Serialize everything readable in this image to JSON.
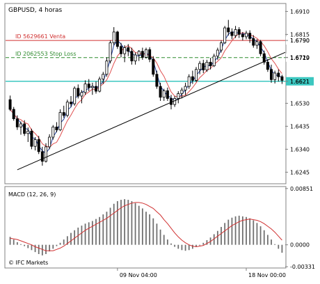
{
  "chart_data": [
    {
      "type": "candlestick",
      "title": "GBPUSD, 4 horas",
      "y_ticks": [
        "1.6910",
        "1.6815",
        "1.6790",
        "1.6720",
        "1.6719",
        "1.6621",
        "1.6530",
        "1.6435",
        "1.6340",
        "1.6245"
      ],
      "ylim": [
        1.62,
        1.694
      ],
      "x_ticks": [
        "09 Nov 04:00",
        "18 Nov 00:00"
      ],
      "colors": {
        "bull": "#ffffff",
        "bear": "#000000",
        "wick": "#000000",
        "ma_fast": "#1f3f9f",
        "ma_slow": "#e05050"
      },
      "annotations": [
        {
          "label": "ID 5629661 Venta",
          "price": 1.679,
          "price_label": "1.6790",
          "color": "#d03030",
          "style": "solid"
        },
        {
          "label": "ID 2062553 Stop Loss",
          "price": 1.6719,
          "price_label": "1.6719",
          "color": "#2e8b2e",
          "style": "dashed"
        },
        {
          "label": "",
          "price": 1.6621,
          "price_label": "1.6621",
          "color": "#3cc7c0",
          "style": "solid",
          "highlight": true
        }
      ],
      "trendline": {
        "from": [
          2,
          1.6255
        ],
        "to": [
          77,
          1.6735
        ],
        "color": "#000000"
      },
      "candles": [
        [
          1.6545,
          1.6562,
          1.6498,
          1.6505
        ],
        [
          1.6505,
          1.6515,
          1.6458,
          1.6466
        ],
        [
          1.6466,
          1.648,
          1.642,
          1.6432
        ],
        [
          1.6432,
          1.6455,
          1.64,
          1.6445
        ],
        [
          1.6445,
          1.646,
          1.6395,
          1.6405
        ],
        [
          1.6405,
          1.643,
          1.637,
          1.6415
        ],
        [
          1.6415,
          1.6425,
          1.634,
          1.6352
        ],
        [
          1.6352,
          1.639,
          1.6335,
          1.638
        ],
        [
          1.638,
          1.6395,
          1.632,
          1.633
        ],
        [
          1.633,
          1.635,
          1.6272,
          1.629
        ],
        [
          1.629,
          1.6365,
          1.6285,
          1.635
        ],
        [
          1.635,
          1.6402,
          1.634,
          1.639
        ],
        [
          1.639,
          1.644,
          1.638,
          1.6432
        ],
        [
          1.6432,
          1.6452,
          1.641,
          1.642
        ],
        [
          1.642,
          1.6505,
          1.6415,
          1.6492
        ],
        [
          1.6492,
          1.652,
          1.647,
          1.648
        ],
        [
          1.648,
          1.6545,
          1.6472,
          1.6535
        ],
        [
          1.6535,
          1.656,
          1.6515,
          1.6528
        ],
        [
          1.6528,
          1.66,
          1.652,
          1.6592
        ],
        [
          1.6592,
          1.6608,
          1.655,
          1.656
        ],
        [
          1.656,
          1.6585,
          1.653,
          1.6575
        ],
        [
          1.6575,
          1.6625,
          1.6565,
          1.661
        ],
        [
          1.661,
          1.663,
          1.658,
          1.6595
        ],
        [
          1.6595,
          1.6615,
          1.6565,
          1.66
        ],
        [
          1.66,
          1.662,
          1.657,
          1.658
        ],
        [
          1.658,
          1.664,
          1.6575,
          1.663
        ],
        [
          1.663,
          1.666,
          1.661,
          1.665
        ],
        [
          1.665,
          1.672,
          1.664,
          1.6705
        ],
        [
          1.6705,
          1.679,
          1.6695,
          1.678
        ],
        [
          1.678,
          1.6845,
          1.677,
          1.6825
        ],
        [
          1.6825,
          1.683,
          1.6755,
          1.6765
        ],
        [
          1.6765,
          1.678,
          1.672,
          1.6735
        ],
        [
          1.6735,
          1.677,
          1.67,
          1.676
        ],
        [
          1.676,
          1.6775,
          1.6725,
          1.6745
        ],
        [
          1.6745,
          1.676,
          1.669,
          1.6705
        ],
        [
          1.6705,
          1.674,
          1.669,
          1.673
        ],
        [
          1.673,
          1.675,
          1.6705,
          1.6745
        ],
        [
          1.6745,
          1.676,
          1.671,
          1.672
        ],
        [
          1.672,
          1.676,
          1.6715,
          1.6752
        ],
        [
          1.6752,
          1.6762,
          1.67,
          1.6712
        ],
        [
          1.6712,
          1.6725,
          1.664,
          1.665
        ],
        [
          1.665,
          1.6665,
          1.659,
          1.66
        ],
        [
          1.66,
          1.6615,
          1.654,
          1.6555
        ],
        [
          1.6555,
          1.659,
          1.654,
          1.6582
        ],
        [
          1.6582,
          1.6595,
          1.654,
          1.655
        ],
        [
          1.655,
          1.6565,
          1.6505,
          1.6525
        ],
        [
          1.6525,
          1.656,
          1.6515,
          1.655
        ],
        [
          1.655,
          1.658,
          1.653,
          1.657
        ],
        [
          1.657,
          1.6595,
          1.655,
          1.6585
        ],
        [
          1.6585,
          1.6615,
          1.6565,
          1.66
        ],
        [
          1.66,
          1.665,
          1.659,
          1.664
        ],
        [
          1.664,
          1.6665,
          1.661,
          1.6625
        ],
        [
          1.6625,
          1.668,
          1.6618,
          1.667
        ],
        [
          1.667,
          1.6705,
          1.665,
          1.6695
        ],
        [
          1.6695,
          1.671,
          1.6655,
          1.6668
        ],
        [
          1.6668,
          1.671,
          1.666,
          1.67
        ],
        [
          1.67,
          1.6718,
          1.667,
          1.6685
        ],
        [
          1.6685,
          1.6735,
          1.668,
          1.6725
        ],
        [
          1.6725,
          1.676,
          1.671,
          1.675
        ],
        [
          1.675,
          1.679,
          1.674,
          1.678
        ],
        [
          1.678,
          1.685,
          1.6775,
          1.6842
        ],
        [
          1.6842,
          1.6875,
          1.681,
          1.6825
        ],
        [
          1.6825,
          1.684,
          1.6795,
          1.681
        ],
        [
          1.681,
          1.685,
          1.68,
          1.6835
        ],
        [
          1.6835,
          1.6845,
          1.68,
          1.6815
        ],
        [
          1.6815,
          1.6825,
          1.679,
          1.6805
        ],
        [
          1.6805,
          1.683,
          1.6795,
          1.682
        ],
        [
          1.682,
          1.6832,
          1.678,
          1.6798
        ],
        [
          1.6798,
          1.6812,
          1.676,
          1.677
        ],
        [
          1.677,
          1.6795,
          1.6755,
          1.6785
        ],
        [
          1.6785,
          1.6792,
          1.6725,
          1.6735
        ],
        [
          1.6735,
          1.6748,
          1.669,
          1.67
        ],
        [
          1.67,
          1.6712,
          1.666,
          1.667
        ],
        [
          1.667,
          1.669,
          1.6615,
          1.6628
        ],
        [
          1.6628,
          1.6665,
          1.6612,
          1.6655
        ],
        [
          1.6655,
          1.667,
          1.662,
          1.664
        ],
        [
          1.664,
          1.6648,
          1.661,
          1.6625
        ]
      ]
    },
    {
      "type": "bar",
      "title": "MACD (12, 26, 9)",
      "y_ticks": [
        "0.00851",
        "0.0000",
        "-0.00331"
      ],
      "ylim": [
        -0.0034,
        0.0087
      ],
      "colors": {
        "bars": "#707070",
        "signal": "#d03030"
      },
      "watermark": "© IFC Markets",
      "macd_values": [
        0.0012,
        0.0008,
        0.0004,
        0.0001,
        -0.0002,
        -0.0005,
        -0.0008,
        -0.0011,
        -0.0014,
        -0.0016,
        -0.0014,
        -0.001,
        -0.0006,
        -0.0002,
        0.0003,
        0.0008,
        0.0013,
        0.0018,
        0.0022,
        0.0026,
        0.0029,
        0.0032,
        0.0034,
        0.0036,
        0.0039,
        0.0042,
        0.0046,
        0.005,
        0.0056,
        0.0062,
        0.0066,
        0.0068,
        0.0069,
        0.0068,
        0.0066,
        0.0063,
        0.0059,
        0.0055,
        0.005,
        0.0046,
        0.004,
        0.0032,
        0.0023,
        0.0015,
        0.0008,
        0.0002,
        -0.0003,
        -0.0006,
        -0.0008,
        -0.0009,
        -0.0008,
        -0.0006,
        -0.0003,
        0.0,
        0.0003,
        0.0007,
        0.0011,
        0.0016,
        0.0021,
        0.0027,
        0.0033,
        0.0038,
        0.0041,
        0.0043,
        0.0044,
        0.0043,
        0.0042,
        0.004,
        0.0037,
        0.0033,
        0.0028,
        0.0022,
        0.0015,
        0.0008,
        0.0001,
        -0.0006,
        -0.0012
      ],
      "signal_values": [
        0.001,
        0.0009,
        0.0008,
        0.0006,
        0.0004,
        0.0002,
        0.0,
        -0.0003,
        -0.0005,
        -0.0007,
        -0.0009,
        -0.0009,
        -0.0009,
        -0.0007,
        -0.0005,
        -0.0002,
        0.0002,
        0.0006,
        0.001,
        0.0014,
        0.0018,
        0.0022,
        0.0025,
        0.0028,
        0.0031,
        0.0034,
        0.0037,
        0.004,
        0.0044,
        0.0048,
        0.0052,
        0.0056,
        0.0059,
        0.0061,
        0.0063,
        0.0064,
        0.0064,
        0.0063,
        0.0061,
        0.0058,
        0.0055,
        0.005,
        0.0045,
        0.0038,
        0.0032,
        0.0025,
        0.0018,
        0.0012,
        0.0007,
        0.0003,
        0.0,
        -0.0002,
        -0.0003,
        -0.0002,
        -0.0001,
        0.0002,
        0.0005,
        0.0009,
        0.0013,
        0.0017,
        0.0021,
        0.0025,
        0.0029,
        0.0032,
        0.0035,
        0.0037,
        0.0038,
        0.0039,
        0.0038,
        0.0037,
        0.0035,
        0.0032,
        0.0028,
        0.0024,
        0.0019,
        0.0013,
        0.0007
      ]
    }
  ]
}
